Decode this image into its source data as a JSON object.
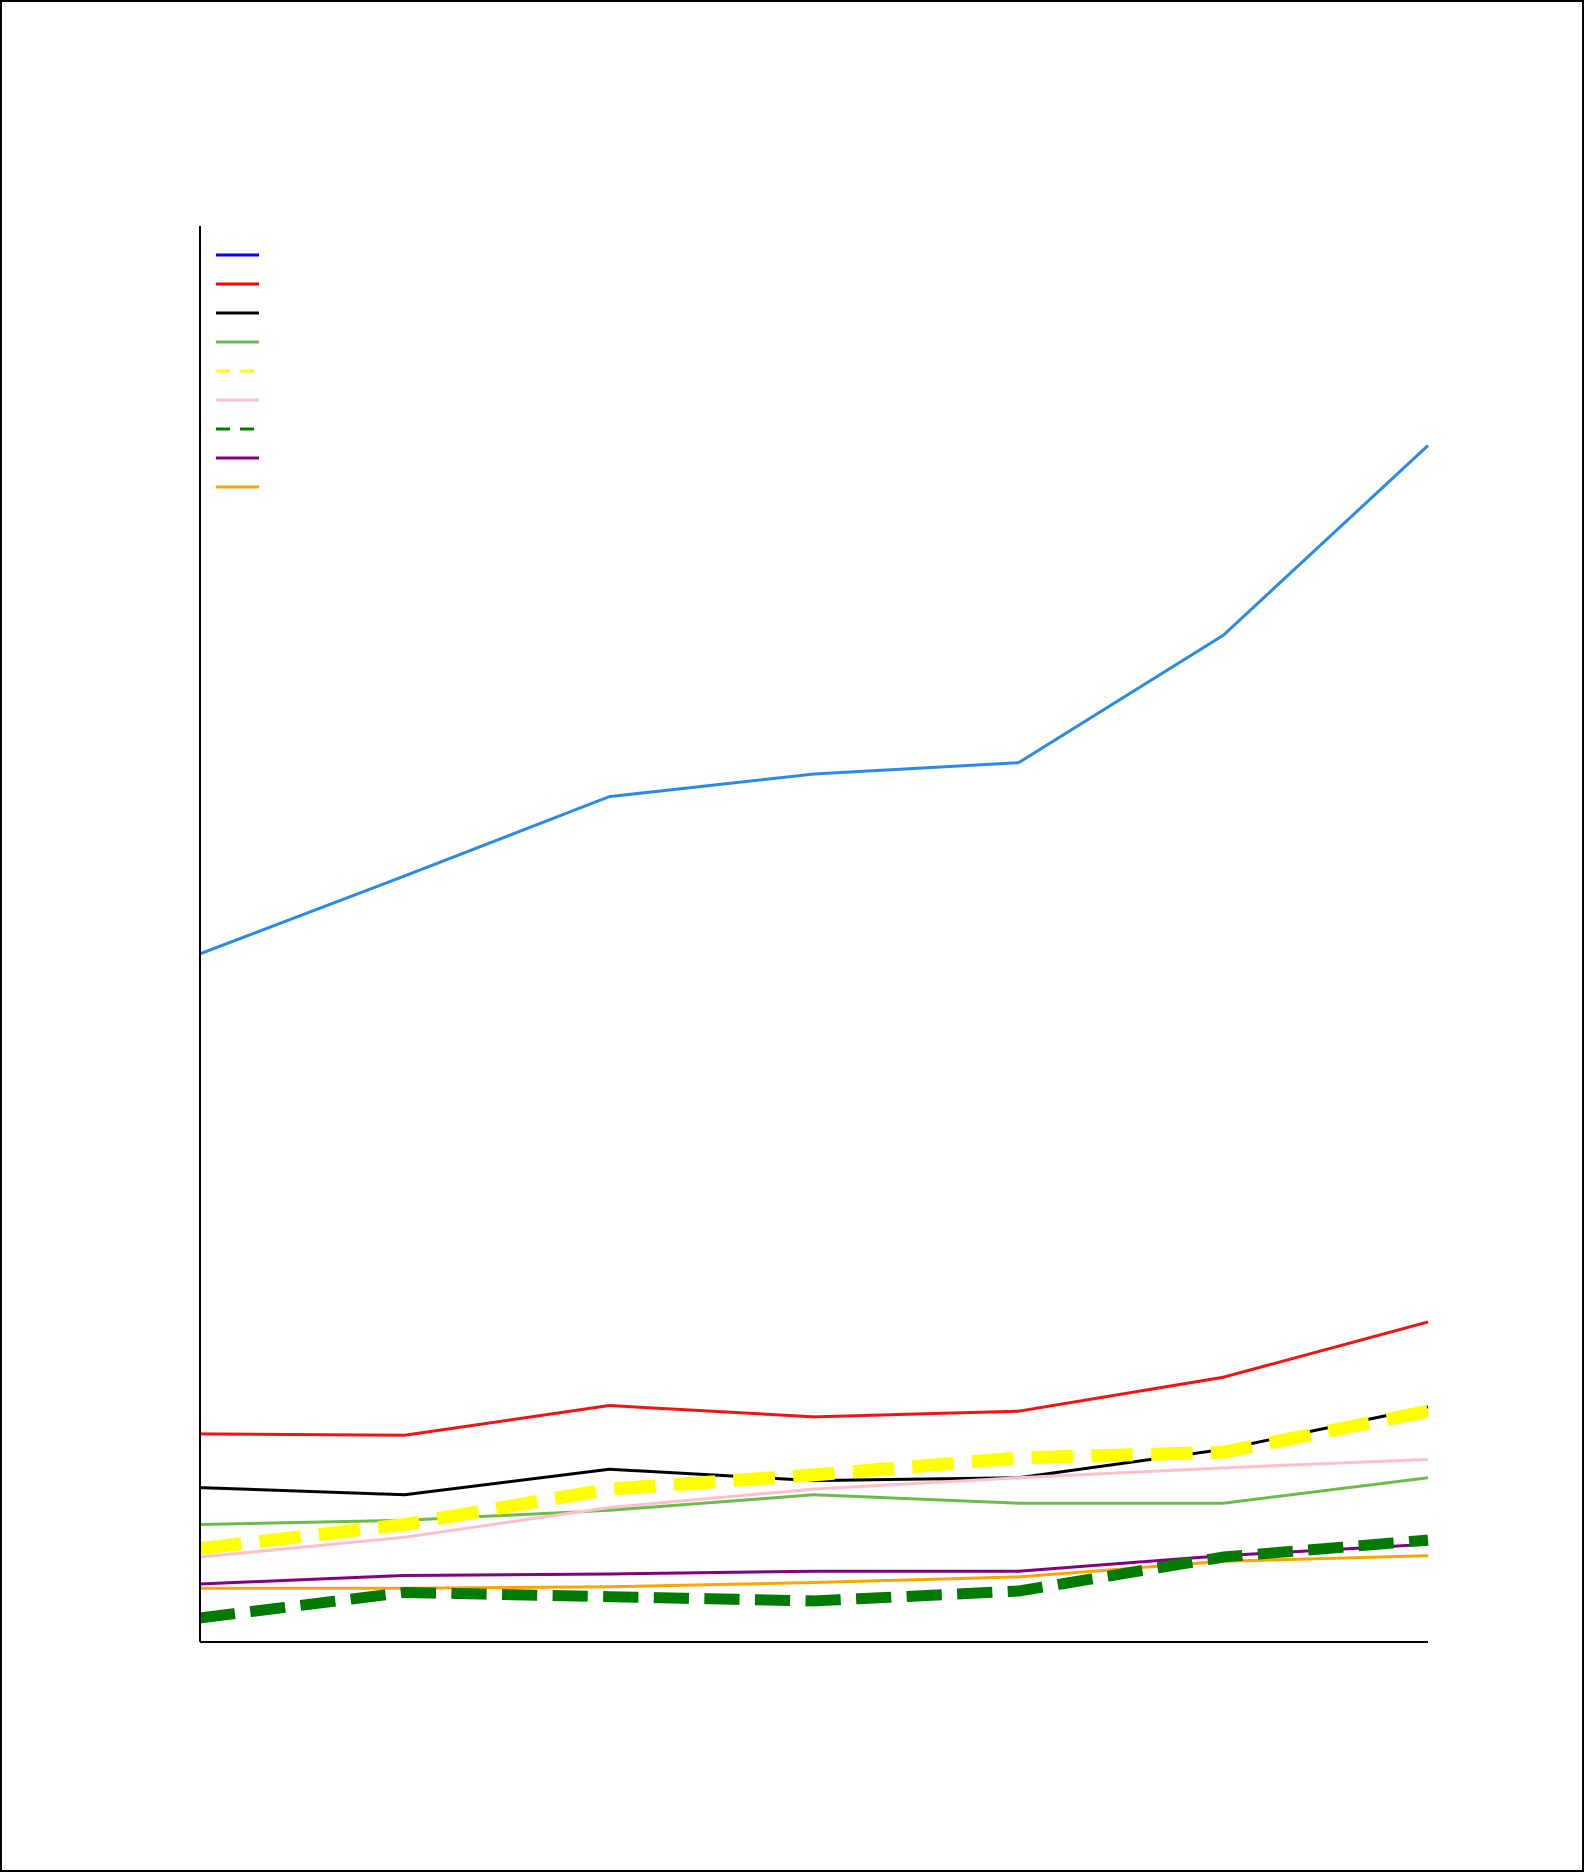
{
  "chart_data": {
    "type": "line",
    "title": "",
    "xlabel": "",
    "ylabel": "",
    "x": [
      1,
      2,
      3,
      4,
      5,
      6,
      7
    ],
    "xlim": [
      1,
      7
    ],
    "ylim": [
      0,
      100
    ],
    "grid": false,
    "legend": "top-left",
    "series": [
      {
        "color": "#2b8ae8",
        "legend_color": "#0000ff",
        "dash": "solid",
        "width": 3,
        "values": [
          48.6,
          54.1,
          59.7,
          61.3,
          62.1,
          71.1,
          84.5
        ]
      },
      {
        "color": "#f01414",
        "legend_color": "#ff0000",
        "dash": "solid",
        "width": 3,
        "values": [
          14.7,
          14.6,
          16.7,
          15.9,
          16.3,
          18.7,
          22.6
        ]
      },
      {
        "color": "#000000",
        "legend_color": "#000000",
        "dash": "solid",
        "width": 3,
        "values": [
          10.9,
          10.4,
          12.2,
          11.4,
          11.6,
          13.6,
          16.6
        ]
      },
      {
        "color": "#6cbc4c",
        "legend_color": "#6cbc4c",
        "dash": "solid",
        "width": 3,
        "values": [
          8.3,
          8.6,
          9.3,
          10.4,
          9.8,
          9.8,
          11.6
        ]
      },
      {
        "color": "#ffff00",
        "legend_color": "#ffff00",
        "dash": "dashed",
        "width": 13,
        "values": [
          6.6,
          8.3,
          10.8,
          11.8,
          13.0,
          13.4,
          16.3
        ]
      },
      {
        "color": "#ffc0cb",
        "legend_color": "#ffc0cb",
        "dash": "solid",
        "width": 3,
        "values": [
          6.0,
          7.4,
          9.5,
          10.8,
          11.6,
          12.3,
          12.9
        ]
      },
      {
        "color": "#007a00",
        "legend_color": "#007a00",
        "dash": "dashed",
        "width": 11,
        "values": [
          1.7,
          3.5,
          3.2,
          2.9,
          3.6,
          6.0,
          7.2
        ]
      },
      {
        "color": "#800080",
        "legend_color": "#800080",
        "dash": "solid",
        "width": 3,
        "values": [
          4.1,
          4.7,
          4.8,
          5.0,
          5.0,
          6.1,
          6.9
        ]
      },
      {
        "color": "#ffa500",
        "legend_color": "#ffa500",
        "dash": "solid",
        "width": 3,
        "values": [
          3.8,
          3.8,
          3.9,
          4.2,
          4.6,
          5.7,
          6.1
        ]
      }
    ]
  }
}
